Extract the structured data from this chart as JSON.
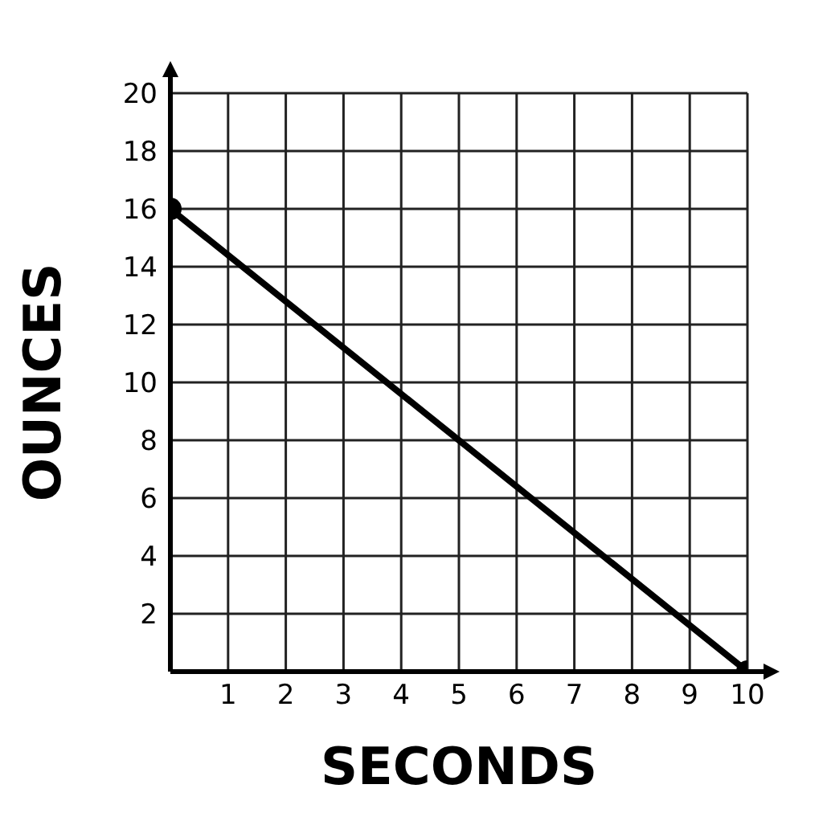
{
  "chart_data": {
    "type": "line",
    "xlabel": "SECONDS",
    "ylabel": "OUNCES",
    "x": [
      0,
      10
    ],
    "series": [
      {
        "color": "#000000",
        "values": [
          16,
          0
        ]
      }
    ],
    "xlim": [
      0,
      10
    ],
    "xticks": [
      1,
      2,
      3,
      4,
      5,
      6,
      7,
      8,
      9,
      10
    ],
    "ylim": [
      0,
      20
    ],
    "yticks": [
      2,
      4,
      6,
      8,
      10,
      12,
      14,
      16,
      18,
      20
    ],
    "grid": true,
    "marker": "circle",
    "line_style": "solid"
  }
}
